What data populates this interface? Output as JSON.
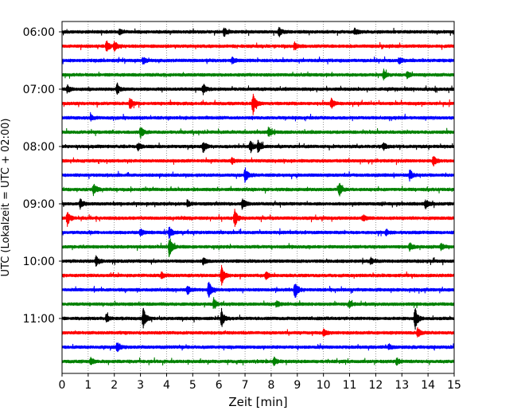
{
  "chart_data": {
    "type": "line",
    "xlabel": "Zeit  [min]",
    "ylabel": "UTC (Lokalzeit = UTC + 02:00)",
    "xlim": [
      0,
      15
    ],
    "x_ticks": [
      0,
      1,
      2,
      3,
      4,
      5,
      6,
      7,
      8,
      9,
      10,
      11,
      12,
      13,
      14,
      15
    ],
    "y_tick_labels": [
      "06:00",
      "07:00",
      "08:00",
      "09:00",
      "10:00",
      "11:00"
    ],
    "grid": "vertical dotted lines at each minute",
    "trace_colors": [
      "#000000",
      "#ff0000",
      "#0000ff",
      "#008000"
    ],
    "traces": [
      {
        "start": "06:00",
        "events": [
          [
            2.2,
            0.25
          ],
          [
            6.2,
            0.35
          ],
          [
            8.3,
            0.4
          ],
          [
            11.2,
            0.3
          ]
        ]
      },
      {
        "start": "06:15",
        "events": [
          [
            1.7,
            0.55
          ],
          [
            2.0,
            0.45
          ],
          [
            8.9,
            0.3
          ]
        ]
      },
      {
        "start": "06:30",
        "events": [
          [
            3.1,
            0.3
          ],
          [
            6.5,
            0.25
          ],
          [
            12.9,
            0.3
          ]
        ]
      },
      {
        "start": "06:45",
        "events": [
          [
            12.3,
            0.45
          ],
          [
            13.2,
            0.3
          ]
        ]
      },
      {
        "start": "07:00",
        "events": [
          [
            2.1,
            0.45
          ],
          [
            5.4,
            0.5
          ],
          [
            0.2,
            0.3
          ]
        ]
      },
      {
        "start": "07:15",
        "events": [
          [
            2.6,
            0.5
          ],
          [
            7.3,
            1.0
          ],
          [
            10.3,
            0.45
          ]
        ]
      },
      {
        "start": "07:30",
        "events": [
          [
            1.1,
            0.25
          ]
        ]
      },
      {
        "start": "07:45",
        "events": [
          [
            3.0,
            0.55
          ],
          [
            7.9,
            0.45
          ]
        ]
      },
      {
        "start": "08:00",
        "events": [
          [
            2.9,
            0.35
          ],
          [
            5.4,
            0.55
          ],
          [
            7.2,
            0.6
          ],
          [
            7.5,
            0.55
          ],
          [
            12.3,
            0.3
          ]
        ]
      },
      {
        "start": "08:15",
        "events": [
          [
            14.2,
            0.45
          ],
          [
            6.5,
            0.25
          ]
        ]
      },
      {
        "start": "08:30",
        "events": [
          [
            7.0,
            0.65
          ],
          [
            13.3,
            0.45
          ]
        ]
      },
      {
        "start": "08:45",
        "events": [
          [
            1.2,
            0.5
          ],
          [
            10.6,
            0.6
          ]
        ]
      },
      {
        "start": "09:00",
        "events": [
          [
            0.7,
            0.4
          ],
          [
            6.9,
            0.55
          ],
          [
            13.9,
            0.4
          ],
          [
            4.8,
            0.25
          ]
        ]
      },
      {
        "start": "09:15",
        "events": [
          [
            0.2,
            0.65
          ],
          [
            6.6,
            0.8
          ],
          [
            11.5,
            0.3
          ]
        ]
      },
      {
        "start": "09:30",
        "events": [
          [
            3.0,
            0.3
          ],
          [
            4.1,
            0.5
          ],
          [
            12.4,
            0.25
          ]
        ]
      },
      {
        "start": "09:45",
        "events": [
          [
            4.1,
            1.0
          ],
          [
            13.3,
            0.35
          ],
          [
            14.5,
            0.25
          ]
        ]
      },
      {
        "start": "10:00",
        "events": [
          [
            1.3,
            0.45
          ],
          [
            5.4,
            0.3
          ],
          [
            11.8,
            0.25
          ]
        ]
      },
      {
        "start": "10:15",
        "events": [
          [
            6.1,
            0.85
          ],
          [
            7.8,
            0.35
          ],
          [
            3.8,
            0.25
          ]
        ]
      },
      {
        "start": "10:30",
        "events": [
          [
            4.8,
            0.4
          ],
          [
            5.6,
            0.8
          ],
          [
            8.9,
            0.85
          ]
        ]
      },
      {
        "start": "10:45",
        "events": [
          [
            5.8,
            0.5
          ],
          [
            8.2,
            0.3
          ],
          [
            11.0,
            0.25
          ]
        ]
      },
      {
        "start": "11:00",
        "events": [
          [
            3.1,
            1.0
          ],
          [
            6.1,
            0.8
          ],
          [
            13.5,
            1.0
          ],
          [
            1.7,
            0.3
          ]
        ]
      },
      {
        "start": "11:15",
        "events": [
          [
            13.6,
            0.4
          ],
          [
            10.0,
            0.3
          ]
        ]
      },
      {
        "start": "11:30",
        "events": [
          [
            2.1,
            0.45
          ],
          [
            12.5,
            0.25
          ]
        ]
      },
      {
        "start": "11:45",
        "events": [
          [
            1.1,
            0.3
          ],
          [
            8.1,
            0.4
          ],
          [
            12.8,
            0.3
          ]
        ]
      }
    ]
  }
}
